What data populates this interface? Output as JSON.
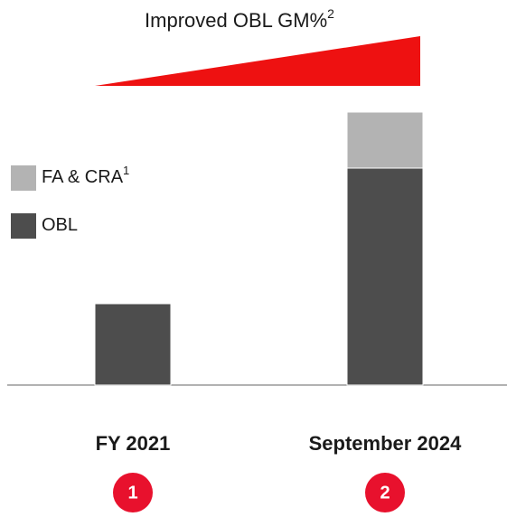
{
  "chart_data": {
    "type": "bar",
    "stacked": true,
    "title": "Improved OBL GM%",
    "title_superscript": "2",
    "categories": [
      "FY 2021",
      "September 2024"
    ],
    "category_badges": [
      "1",
      "2"
    ],
    "series": [
      {
        "name": "OBL",
        "color": "#4d4d4d",
        "values": [
          90,
          240
        ]
      },
      {
        "name": "FA & CRA",
        "name_superscript": "1",
        "color": "#b3b3b3",
        "values": [
          null,
          62
        ]
      }
    ],
    "ylim": [
      0,
      300
    ],
    "legend": "left"
  }
}
